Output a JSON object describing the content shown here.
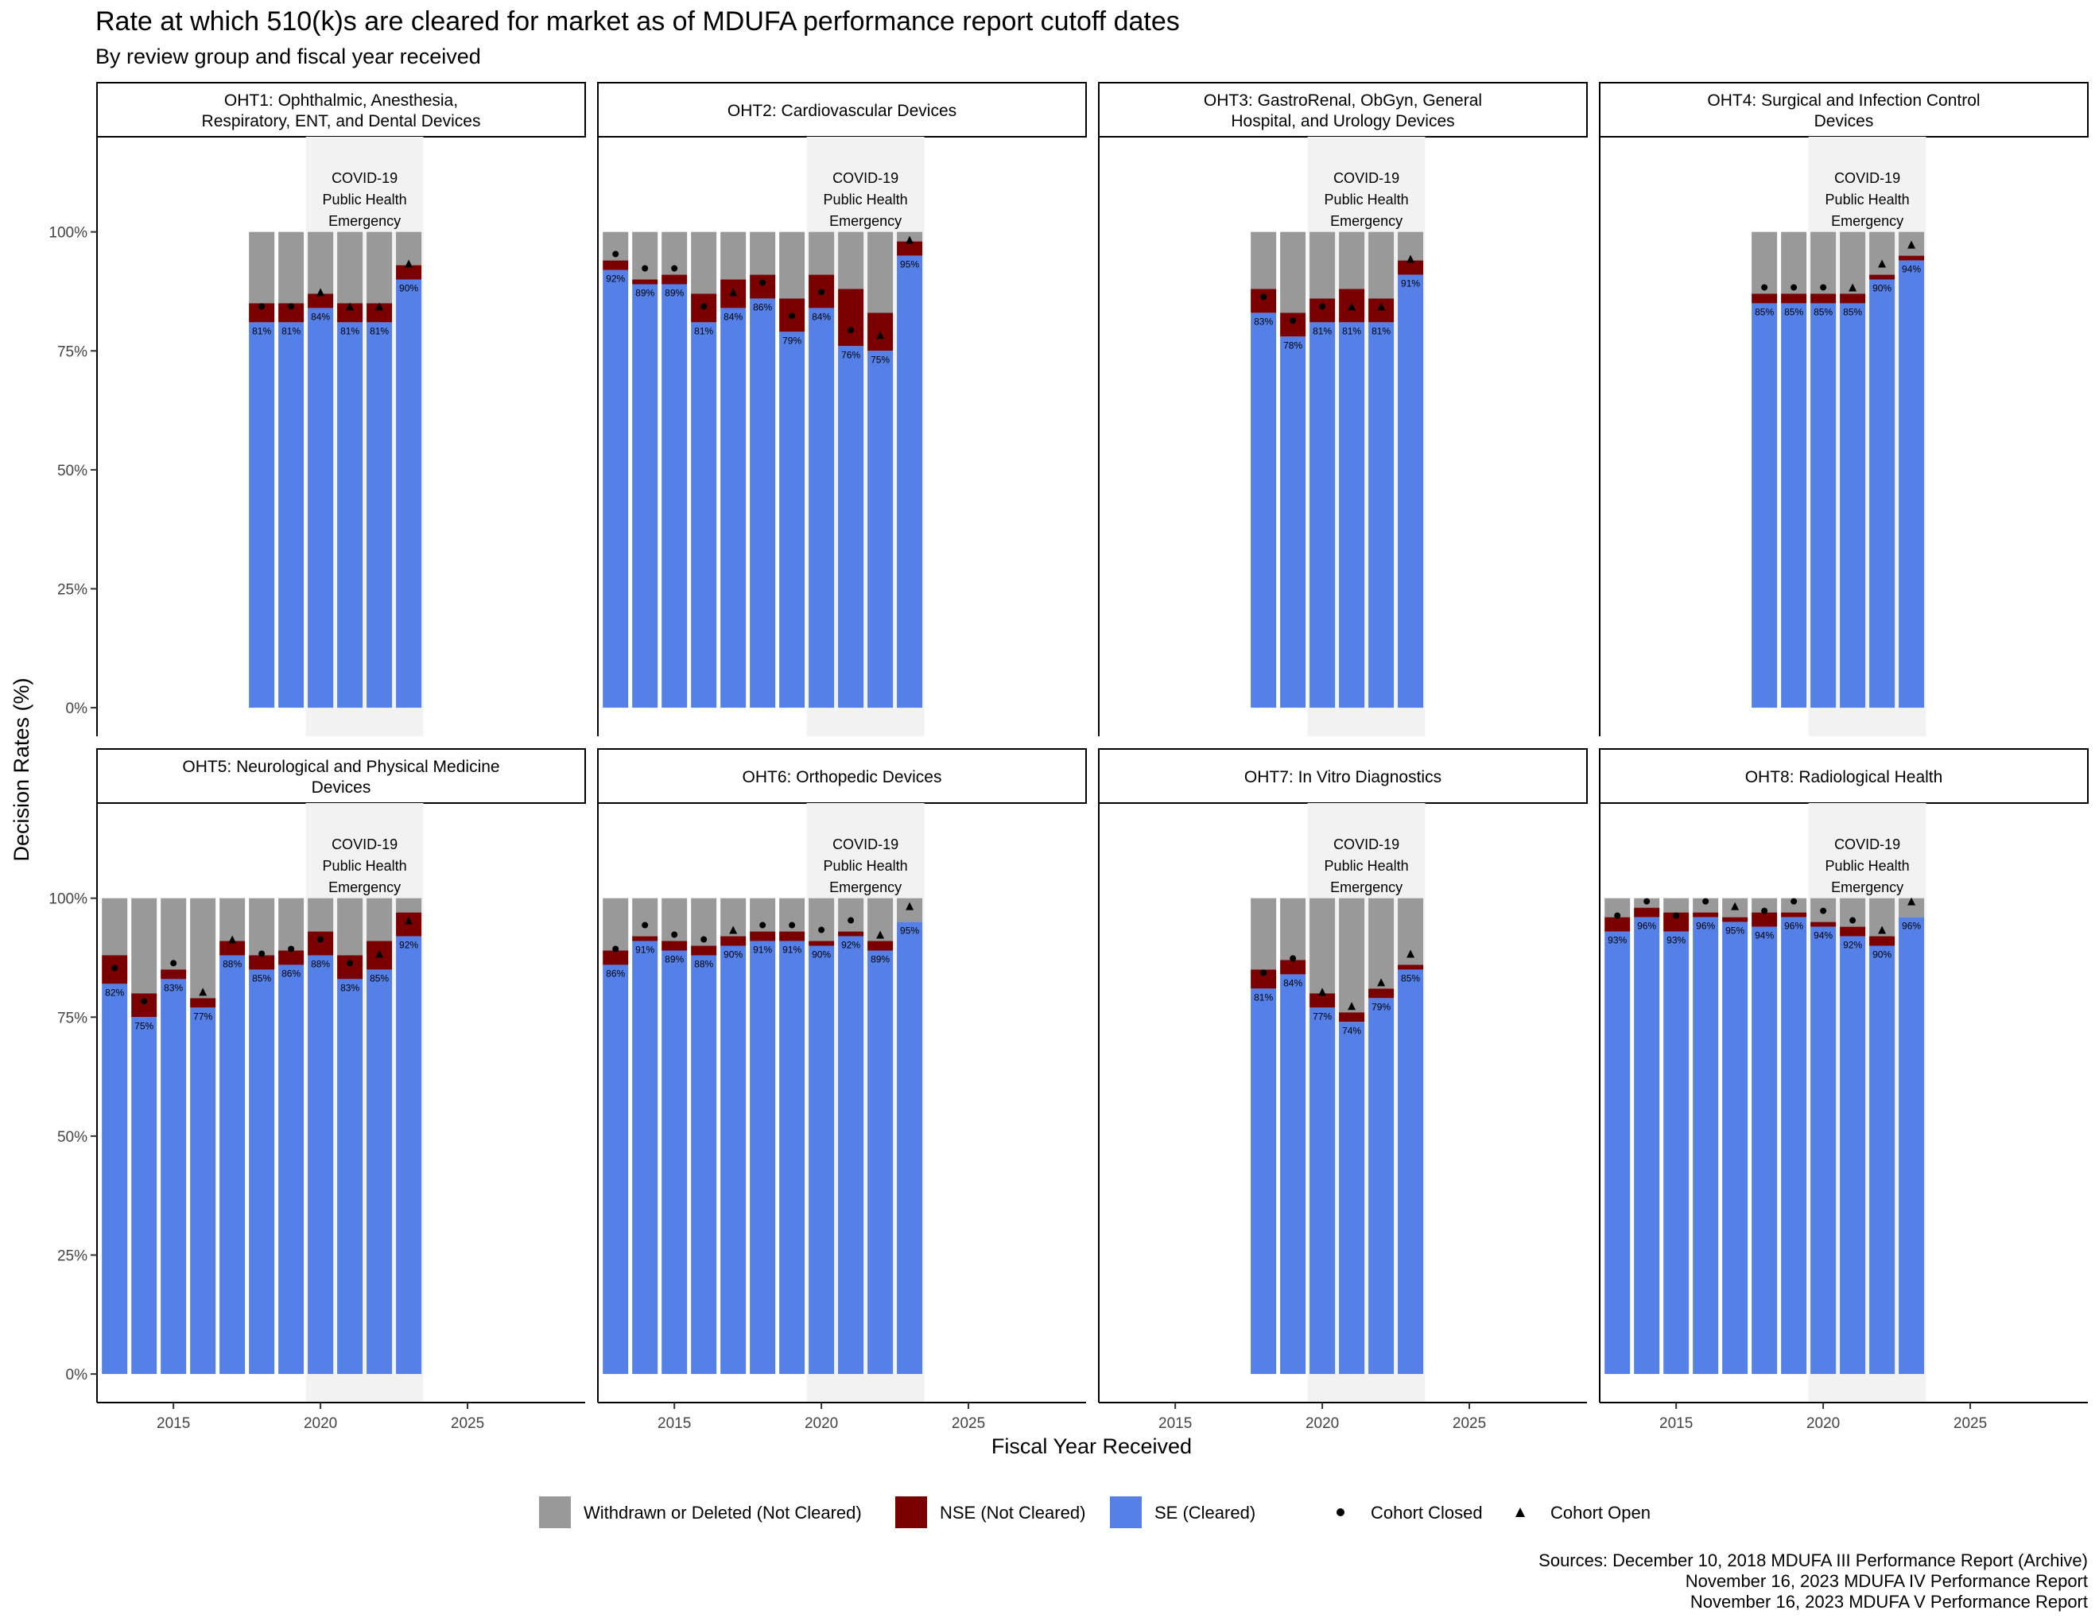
{
  "title": "Rate at which 510(k)s are cleared for market as of MDUFA performance report cutoff dates",
  "subtitle": "By review group and fiscal year received",
  "chart_data": {
    "type": "bar",
    "stacked": true,
    "facets": 8,
    "xlabel": "Fiscal Year Received",
    "ylabel": "Decision Rates (%)",
    "xlim": [
      2012.4,
      2029
    ],
    "ylim": [
      -0.06,
      1.2
    ],
    "x_ticks": [
      2015,
      2020,
      2025
    ],
    "x_tick_labels": [
      "2015",
      "2020",
      "2025"
    ],
    "y_ticks": [
      0,
      0.25,
      0.5,
      0.75,
      1.0
    ],
    "y_tick_labels": [
      "0%",
      "25%",
      "50%",
      "75%",
      "100%"
    ],
    "shaded_region": {
      "x": [
        2019.5,
        2023.5
      ],
      "label": [
        "COVID-19",
        "Public Health",
        "Emergency"
      ]
    },
    "colors": {
      "withdrawn": "#999999",
      "nse": "#7a0000",
      "se": "#5580e8",
      "shade": "#f2f2f2"
    },
    "legend": {
      "position": "bottom",
      "fill": [
        {
          "key": "withdrawn",
          "label": "Withdrawn or Deleted (Not Cleared)"
        },
        {
          "key": "nse",
          "label": "NSE (Not Cleared)"
        },
        {
          "key": "se",
          "label": "SE (Cleared)"
        }
      ],
      "shape": [
        {
          "key": "closed",
          "label": "Cohort Closed",
          "symbol": "circle"
        },
        {
          "key": "open",
          "label": "Cohort Open",
          "symbol": "triangle"
        }
      ]
    },
    "panels": [
      {
        "title": [
          "OHT1: Ophthalmic, Anesthesia,",
          "Respiratory, ENT, and Dental Devices"
        ],
        "years": [
          2018,
          2019,
          2020,
          2021,
          2022,
          2023
        ],
        "se": [
          0.81,
          0.81,
          0.84,
          0.81,
          0.81,
          0.9
        ],
        "nse": [
          0.04,
          0.04,
          0.03,
          0.04,
          0.04,
          0.03
        ],
        "labels": [
          "81%",
          "81%",
          "84%",
          "81%",
          "81%",
          "90%"
        ],
        "marker": [
          "closed",
          "closed",
          "open",
          "open",
          "open",
          "open"
        ]
      },
      {
        "title": [
          "OHT2: Cardiovascular Devices"
        ],
        "years": [
          2013,
          2014,
          2015,
          2016,
          2017,
          2018,
          2019,
          2020,
          2021,
          2022,
          2023
        ],
        "se": [
          0.92,
          0.89,
          0.89,
          0.81,
          0.84,
          0.86,
          0.79,
          0.84,
          0.76,
          0.75,
          0.95
        ],
        "nse": [
          0.02,
          0.01,
          0.02,
          0.06,
          0.06,
          0.05,
          0.07,
          0.07,
          0.12,
          0.08,
          0.03
        ],
        "labels": [
          "92%",
          "89%",
          "89%",
          "81%",
          "84%",
          "86%",
          "79%",
          "84%",
          "76%",
          "75%",
          "95%"
        ],
        "marker": [
          "closed",
          "closed",
          "closed",
          "closed",
          "open",
          "closed",
          "closed",
          "closed",
          "closed",
          "open",
          "open"
        ]
      },
      {
        "title": [
          "OHT3: GastroRenal, ObGyn, General",
          "Hospital, and Urology Devices"
        ],
        "years": [
          2018,
          2019,
          2020,
          2021,
          2022,
          2023
        ],
        "se": [
          0.83,
          0.78,
          0.81,
          0.81,
          0.81,
          0.91
        ],
        "nse": [
          0.05,
          0.05,
          0.05,
          0.07,
          0.05,
          0.03
        ],
        "labels": [
          "83%",
          "78%",
          "81%",
          "81%",
          "81%",
          "91%"
        ],
        "marker": [
          "closed",
          "closed",
          "closed",
          "open",
          "open",
          "open"
        ]
      },
      {
        "title": [
          "OHT4: Surgical and Infection Control",
          "Devices"
        ],
        "years": [
          2018,
          2019,
          2020,
          2021,
          2022,
          2023
        ],
        "se": [
          0.85,
          0.85,
          0.85,
          0.85,
          0.9,
          0.94
        ],
        "nse": [
          0.02,
          0.02,
          0.02,
          0.02,
          0.01,
          0.01
        ],
        "labels": [
          "85%",
          "85%",
          "85%",
          "85%",
          "90%",
          "94%"
        ],
        "marker": [
          "closed",
          "closed",
          "closed",
          "open",
          "open",
          "open"
        ]
      },
      {
        "title": [
          "OHT5: Neurological and Physical Medicine",
          "Devices"
        ],
        "years": [
          2013,
          2014,
          2015,
          2016,
          2017,
          2018,
          2019,
          2020,
          2021,
          2022,
          2023
        ],
        "se": [
          0.82,
          0.75,
          0.83,
          0.77,
          0.88,
          0.85,
          0.86,
          0.88,
          0.83,
          0.85,
          0.92
        ],
        "nse": [
          0.06,
          0.05,
          0.02,
          0.02,
          0.03,
          0.03,
          0.03,
          0.05,
          0.05,
          0.06,
          0.05
        ],
        "labels": [
          "82%",
          "75%",
          "83%",
          "77%",
          "88%",
          "85%",
          "86%",
          "88%",
          "83%",
          "85%",
          "92%"
        ],
        "marker": [
          "closed",
          "closed",
          "closed",
          "open",
          "open",
          "closed",
          "closed",
          "closed",
          "closed",
          "open",
          "open"
        ]
      },
      {
        "title": [
          "OHT6: Orthopedic Devices"
        ],
        "years": [
          2013,
          2014,
          2015,
          2016,
          2017,
          2018,
          2019,
          2020,
          2021,
          2022,
          2023
        ],
        "se": [
          0.86,
          0.91,
          0.89,
          0.88,
          0.9,
          0.91,
          0.91,
          0.9,
          0.92,
          0.89,
          0.95
        ],
        "nse": [
          0.03,
          0.01,
          0.02,
          0.02,
          0.02,
          0.02,
          0.02,
          0.01,
          0.01,
          0.02,
          0.0
        ],
        "labels": [
          "86%",
          "91%",
          "89%",
          "88%",
          "90%",
          "91%",
          "91%",
          "90%",
          "92%",
          "89%",
          "95%"
        ],
        "marker": [
          "closed",
          "closed",
          "closed",
          "closed",
          "open",
          "closed",
          "closed",
          "closed",
          "closed",
          "open",
          "open"
        ]
      },
      {
        "title": [
          "OHT7: In Vitro Diagnostics"
        ],
        "years": [
          2018,
          2019,
          2020,
          2021,
          2022,
          2023
        ],
        "se": [
          0.81,
          0.84,
          0.77,
          0.74,
          0.79,
          0.85
        ],
        "nse": [
          0.04,
          0.03,
          0.03,
          0.02,
          0.02,
          0.01
        ],
        "labels": [
          "81%",
          "84%",
          "77%",
          "74%",
          "79%",
          "85%"
        ],
        "marker": [
          "closed",
          "closed",
          "open",
          "open",
          "open",
          "open"
        ]
      },
      {
        "title": [
          "OHT8: Radiological Health"
        ],
        "years": [
          2013,
          2014,
          2015,
          2016,
          2017,
          2018,
          2019,
          2020,
          2021,
          2022,
          2023
        ],
        "se": [
          0.93,
          0.96,
          0.93,
          0.96,
          0.95,
          0.94,
          0.96,
          0.94,
          0.92,
          0.9,
          0.96
        ],
        "nse": [
          0.03,
          0.02,
          0.04,
          0.01,
          0.01,
          0.03,
          0.01,
          0.01,
          0.02,
          0.02,
          0.0
        ],
        "labels": [
          "93%",
          "96%",
          "93%",
          "96%",
          "95%",
          "94%",
          "96%",
          "94%",
          "92%",
          "90%",
          "96%"
        ],
        "marker": [
          "closed",
          "closed",
          "closed",
          "closed",
          "open",
          "closed",
          "closed",
          "closed",
          "closed",
          "open",
          "open"
        ]
      }
    ]
  },
  "sources": [
    "Sources: December 10, 2018 MDUFA III Performance Report (Archive)",
    "November 16, 2023 MDUFA IV Performance Report",
    "November 16, 2023 MDUFA V Performance Report"
  ]
}
